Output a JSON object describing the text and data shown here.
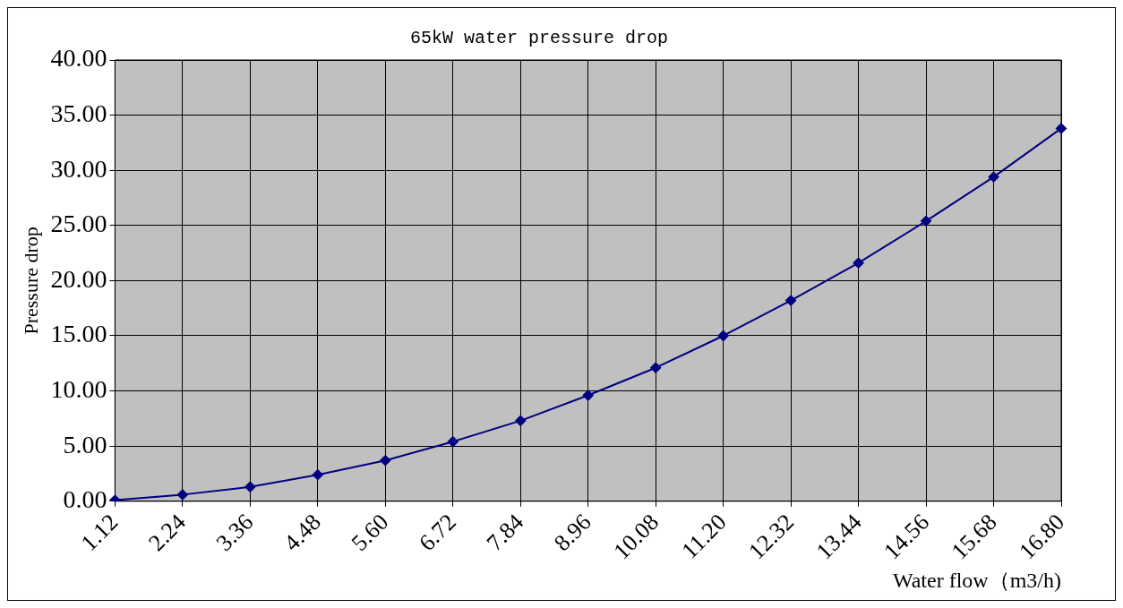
{
  "chart_data": {
    "type": "line",
    "title": "65kW water pressure drop",
    "xlabel": "Water flow（m3/h)",
    "ylabel": "Pressure drop",
    "categories": [
      "1.12",
      "2.24",
      "3.36",
      "4.48",
      "5.60",
      "6.72",
      "7.84",
      "8.96",
      "10.08",
      "11.20",
      "12.32",
      "13.44",
      "14.56",
      "15.68",
      "16.80"
    ],
    "series": [
      {
        "color": "#000080",
        "values": [
          0.1,
          0.6,
          1.3,
          2.4,
          3.7,
          5.4,
          7.3,
          9.6,
          12.1,
          15.0,
          18.2,
          21.6,
          25.4,
          29.4,
          33.8
        ]
      }
    ],
    "ylim": [
      0,
      40
    ],
    "yticks": [
      {
        "value": 0,
        "label": "0.00"
      },
      {
        "value": 5,
        "label": "5.00"
      },
      {
        "value": 10,
        "label": "10.00"
      },
      {
        "value": 15,
        "label": "15.00"
      },
      {
        "value": 20,
        "label": "20.00"
      },
      {
        "value": 25,
        "label": "25.00"
      },
      {
        "value": 30,
        "label": "30.00"
      },
      {
        "value": 35,
        "label": "35.00"
      },
      {
        "value": 40,
        "label": "40.00"
      }
    ],
    "grid": true,
    "legend": false,
    "marker": "diamond",
    "line_style": "solid"
  }
}
